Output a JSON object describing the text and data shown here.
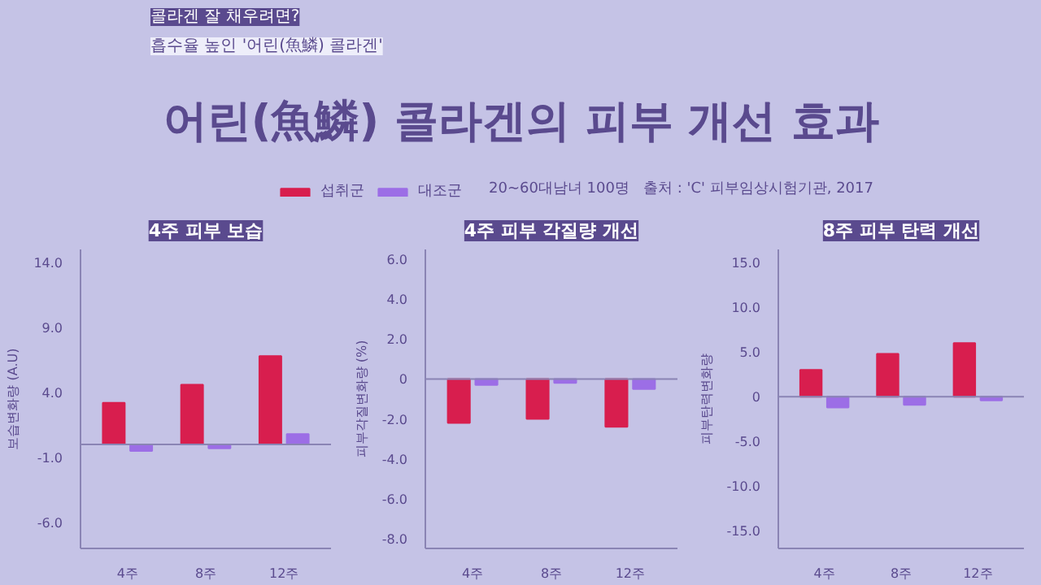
{
  "chart_data": [
    {
      "type": "other",
      "title": "어린(魚鱗) 콜라겐의 피부 개선 효과",
      "annotations": [
        "콜라겐 잘 채우려면?",
        "흡수율 높인 '어린(魚鱗) 콜라겐'",
        "20~60대남녀 100명",
        "출처 : 'C' 피부임상시험기관, 2017"
      ]
    },
    {
      "type": "bar",
      "title": "4주 피부 보습",
      "ylabel": "보습변화량 (A.U)",
      "categories": [
        "4주",
        "8주",
        "12주"
      ],
      "legend": "top",
      "series": [
        {
          "name": "섭취군",
          "color": "#d81e4e",
          "values": [
            3.2,
            4.6,
            6.8
          ]
        },
        {
          "name": "대조군",
          "color": "#9c6ee6",
          "values": [
            -0.5,
            -0.3,
            0.8
          ]
        }
      ],
      "ylim": [
        -8,
        15
      ],
      "yticks": [
        {
          "value": 14,
          "label": "14.0"
        },
        {
          "value": 9,
          "label": "9.0"
        },
        {
          "value": 4,
          "label": "4.0"
        },
        {
          "value": -1,
          "label": "-1.0"
        },
        {
          "value": -6,
          "label": "-6.0"
        }
      ],
      "ref_lines": [
        {
          "axis": "y",
          "value": 0
        }
      ]
    },
    {
      "type": "bar",
      "title": "4주 피부 각질량 개선",
      "ylabel": "피부각질변화량 (%)",
      "categories": [
        "4주",
        "8주",
        "12주"
      ],
      "series": [
        {
          "color": "#d81e4e",
          "values": [
            -2.2,
            -2.0,
            -2.4
          ]
        },
        {
          "color": "#9c6ee6",
          "values": [
            -0.3,
            -0.2,
            -0.5
          ]
        }
      ],
      "ylim": [
        -8.5,
        6.5
      ],
      "yticks": [
        {
          "value": 6,
          "label": "6.0"
        },
        {
          "value": 4,
          "label": "4.0"
        },
        {
          "value": 2,
          "label": "2.0"
        },
        0,
        {
          "value": -2,
          "label": "-2.0"
        },
        {
          "value": -4,
          "label": "-4.0"
        },
        {
          "value": -6,
          "label": "-6.0"
        },
        {
          "value": -8,
          "label": "-8.0"
        }
      ],
      "ref_lines": [
        {
          "axis": "y",
          "value": 0
        }
      ]
    },
    {
      "type": "bar",
      "title": "8주 피부 탄력 개선",
      "ylabel": "피부탄력변화량",
      "categories": [
        "4주",
        "8주",
        "12주"
      ],
      "series": [
        {
          "color": "#d81e4e",
          "values": [
            3.0,
            4.8,
            6.0
          ]
        },
        {
          "color": "#9c6ee6",
          "values": [
            -1.2,
            -0.9,
            -0.4
          ]
        }
      ],
      "ylim": [
        -17,
        16.5
      ],
      "yticks": [
        {
          "value": 15,
          "label": "15.0"
        },
        {
          "value": 10,
          "label": "10.0"
        },
        {
          "value": 5,
          "label": "5.0"
        },
        0,
        {
          "value": -5,
          "label": "-5.0"
        },
        {
          "value": -10,
          "label": "-10.0"
        },
        {
          "value": -15,
          "label": "-15.0"
        }
      ],
      "ref_lines": [
        {
          "axis": "y",
          "value": 0
        }
      ]
    }
  ]
}
